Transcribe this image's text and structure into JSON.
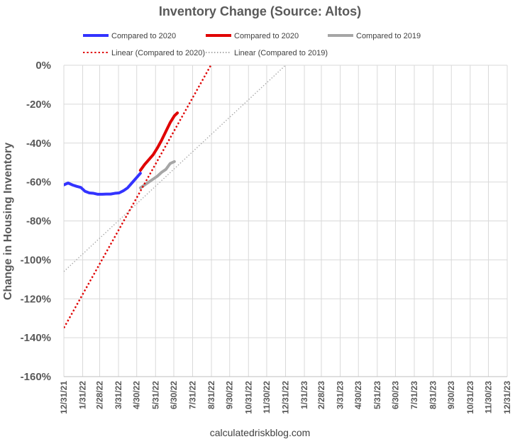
{
  "chart_data": {
    "type": "line",
    "title": "Inventory Change (Source: Altos)",
    "ylabel": "Change in Housing Inventory",
    "xlabel": "",
    "footer": "calculatedriskblog.com",
    "ylim": [
      -160,
      0
    ],
    "yticks": [
      0,
      -20,
      -40,
      -60,
      -80,
      -100,
      -120,
      -140,
      -160
    ],
    "ytick_labels": [
      "0%",
      "-20%",
      "-40%",
      "-60%",
      "-80%",
      "-100%",
      "-120%",
      "-140%",
      "-160%"
    ],
    "x_range": [
      "2021-12-31",
      "2023-12-31"
    ],
    "x_tick_labels": [
      "12/31/21",
      "1/31/22",
      "2/28/22",
      "3/31/22",
      "4/30/22",
      "5/31/22",
      "6/30/22",
      "7/31/22",
      "8/31/22",
      "9/30/22",
      "10/31/22",
      "11/30/22",
      "12/31/22",
      "1/31/23",
      "2/28/23",
      "3/31/23",
      "4/30/23",
      "5/31/23",
      "6/30/23",
      "7/31/23",
      "8/31/23",
      "9/30/23",
      "10/31/23",
      "11/30/23",
      "12/31/23"
    ],
    "grid": true,
    "legend_position": "top",
    "series": [
      {
        "name": "Compared to 2020",
        "color": "#3333ff",
        "style": "solid",
        "points": [
          [
            "2021-12-31",
            -61.5
          ],
          [
            "2022-01-07",
            -60.5
          ],
          [
            "2022-01-14",
            -61.5
          ],
          [
            "2022-01-21",
            -62.2
          ],
          [
            "2022-01-28",
            -62.8
          ],
          [
            "2022-02-04",
            -64.8
          ],
          [
            "2022-02-11",
            -65.6
          ],
          [
            "2022-02-18",
            -65.8
          ],
          [
            "2022-02-25",
            -66.3
          ],
          [
            "2022-03-04",
            -66.3
          ],
          [
            "2022-03-11",
            -66.2
          ],
          [
            "2022-03-18",
            -66.2
          ],
          [
            "2022-03-25",
            -65.8
          ],
          [
            "2022-04-01",
            -65.6
          ],
          [
            "2022-04-08",
            -64.5
          ],
          [
            "2022-04-15",
            -63.0
          ],
          [
            "2022-04-22",
            -60.5
          ],
          [
            "2022-04-29",
            -58.0
          ],
          [
            "2022-05-06",
            -55.5
          ]
        ]
      },
      {
        "name": "Compared to 2020",
        "color": "#e00000",
        "style": "solid",
        "points": [
          [
            "2022-05-06",
            -54.0
          ],
          [
            "2022-05-13",
            -51.0
          ],
          [
            "2022-05-20",
            -48.5
          ],
          [
            "2022-05-27",
            -46.0
          ],
          [
            "2022-06-03",
            -42.5
          ],
          [
            "2022-06-10",
            -38.5
          ],
          [
            "2022-06-17",
            -34.0
          ],
          [
            "2022-06-24",
            -29.5
          ],
          [
            "2022-07-01",
            -26.0
          ],
          [
            "2022-07-06",
            -24.5
          ]
        ]
      },
      {
        "name": "Compared to 2019",
        "color": "#a6a6a6",
        "style": "solid",
        "points": [
          [
            "2022-05-06",
            -63.0
          ],
          [
            "2022-05-13",
            -61.5
          ],
          [
            "2022-05-20",
            -60.0
          ],
          [
            "2022-05-27",
            -58.5
          ],
          [
            "2022-06-03",
            -57.0
          ],
          [
            "2022-06-10",
            -55.0
          ],
          [
            "2022-06-17",
            -53.5
          ],
          [
            "2022-06-24",
            -50.5
          ],
          [
            "2022-07-01",
            -49.5
          ]
        ]
      },
      {
        "name": "Linear (Compared to 2020)",
        "color": "#e00000",
        "style": "dotted",
        "points": [
          [
            "2021-12-31",
            -135
          ],
          [
            "2022-08-30",
            0
          ]
        ]
      },
      {
        "name": "Linear (Compared to 2019)",
        "color": "#a6a6a6",
        "style": "dotted",
        "points": [
          [
            "2021-12-31",
            -106
          ],
          [
            "2022-12-31",
            0
          ]
        ]
      }
    ]
  }
}
